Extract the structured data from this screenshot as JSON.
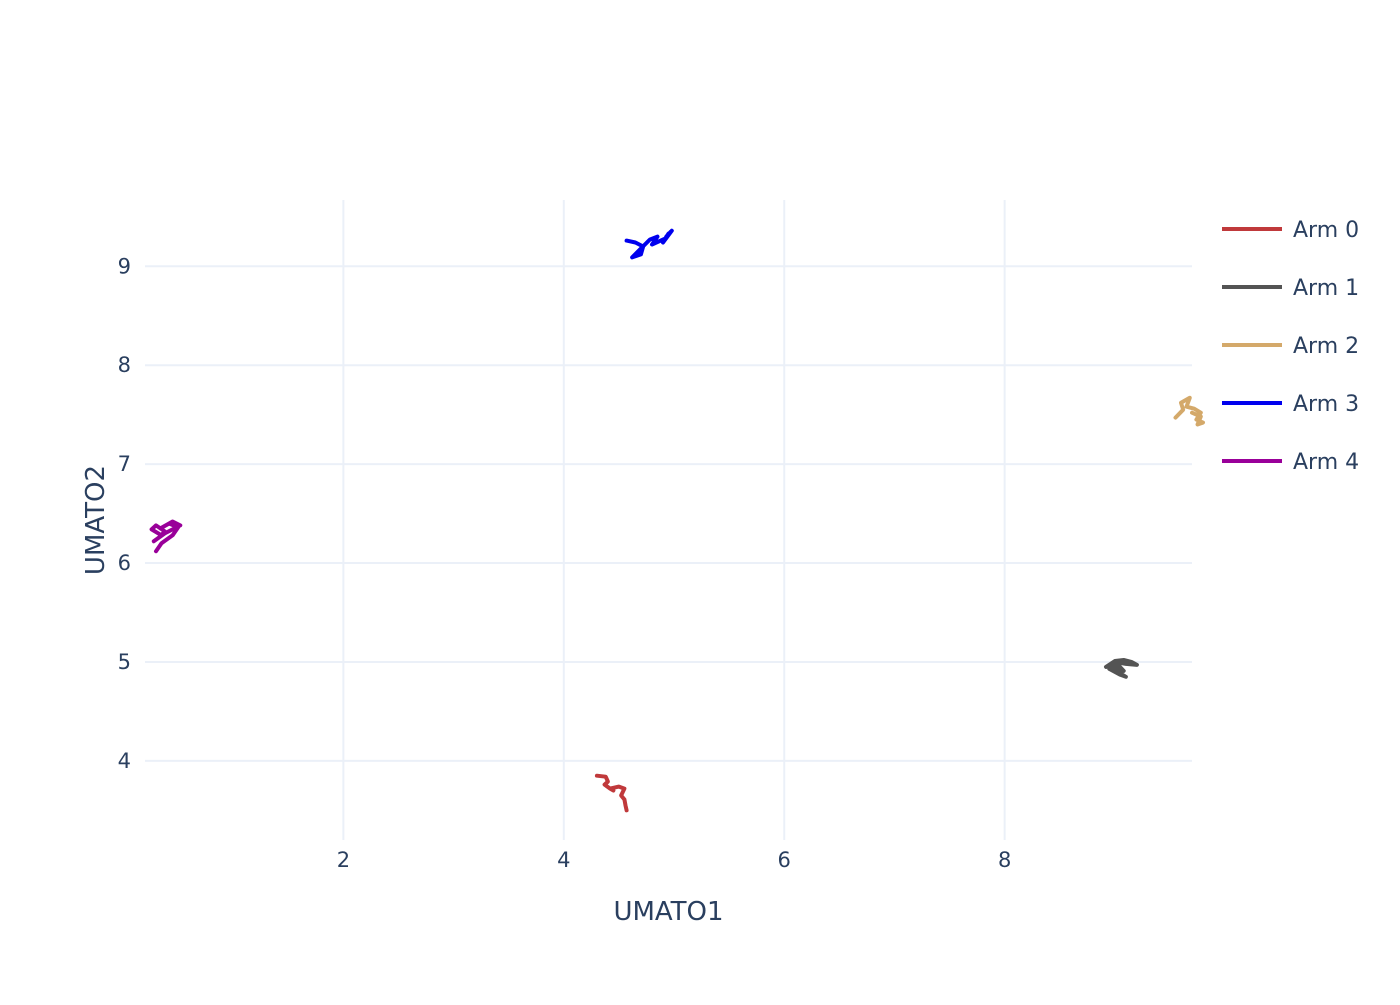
{
  "chart_data": {
    "type": "line",
    "xlabel": "UMATO1",
    "ylabel": "UMATO2",
    "xlim": [
      0.2,
      9.7
    ],
    "ylim": [
      3.2,
      9.67
    ],
    "x_ticks": [
      2,
      4,
      6,
      8
    ],
    "y_ticks": [
      4,
      5,
      6,
      7,
      8,
      9
    ],
    "grid": true,
    "legend_position": "top-right",
    "series": [
      {
        "name": "Arm 0",
        "color": "#c0393b",
        "x": [
          4.3,
          4.38,
          4.4,
          4.37,
          4.42,
          4.45,
          4.42,
          4.5,
          4.55,
          4.52,
          4.55,
          4.56,
          4.57
        ],
        "y": [
          3.85,
          3.84,
          3.79,
          3.76,
          3.72,
          3.7,
          3.72,
          3.74,
          3.72,
          3.65,
          3.61,
          3.55,
          3.5
        ]
      },
      {
        "name": "Arm 1",
        "color": "#545454",
        "x": [
          8.92,
          9.0,
          9.08,
          9.15,
          9.2,
          9.1,
          9.0,
          8.95,
          9.05,
          9.1,
          8.98,
          9.02,
          9.08,
          9.0
        ],
        "y": [
          4.95,
          5.01,
          5.02,
          5.0,
          4.97,
          4.98,
          5.0,
          4.93,
          4.87,
          4.85,
          4.93,
          4.98,
          4.91,
          4.96
        ]
      },
      {
        "name": "Arm 2",
        "color": "#d4a96a",
        "x": [
          9.55,
          9.62,
          9.6,
          9.68,
          9.65,
          9.72,
          9.78,
          9.74,
          9.8,
          9.75,
          9.78,
          9.7
        ],
        "y": [
          7.47,
          7.55,
          7.62,
          7.67,
          7.58,
          7.56,
          7.52,
          7.45,
          7.42,
          7.4,
          7.48,
          7.52
        ]
      },
      {
        "name": "Arm 3",
        "color": "#0000ee",
        "x": [
          4.57,
          4.65,
          4.72,
          4.7,
          4.62,
          4.78,
          4.85,
          4.8,
          4.92,
          4.95,
          4.9,
          4.98,
          4.93,
          4.97
        ],
        "y": [
          9.26,
          9.24,
          9.2,
          9.12,
          9.09,
          9.27,
          9.3,
          9.22,
          9.28,
          9.33,
          9.24,
          9.36,
          9.3,
          9.35
        ]
      },
      {
        "name": "Arm 4",
        "color": "#990099",
        "x": [
          0.3,
          0.35,
          0.45,
          0.5,
          0.42,
          0.34,
          0.45,
          0.52,
          0.38,
          0.28,
          0.33,
          0.38,
          0.3,
          0.26,
          0.35
        ],
        "y": [
          6.12,
          6.2,
          6.28,
          6.36,
          6.4,
          6.35,
          6.42,
          6.38,
          6.3,
          6.22,
          6.26,
          6.32,
          6.38,
          6.34,
          6.28
        ]
      }
    ]
  }
}
